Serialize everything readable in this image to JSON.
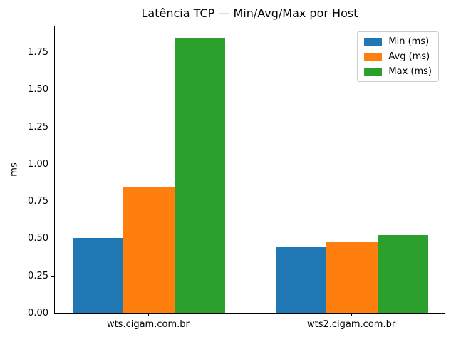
{
  "title": "Latência TCP — Min/Avg/Max por Host",
  "ylabel": "ms",
  "legend": {
    "items": [
      {
        "label": "Min (ms)",
        "color": "#1f77b4"
      },
      {
        "label": "Avg (ms)",
        "color": "#ff7f0e"
      },
      {
        "label": "Max (ms)",
        "color": "#2ca02c"
      }
    ]
  },
  "chart_data": {
    "type": "bar",
    "title": "Latência TCP — Min/Avg/Max por Host",
    "categories": [
      "wts.cigam.com.br",
      "wts2.cigam.com.br"
    ],
    "series": [
      {
        "name": "Min (ms)",
        "color": "#1f77b4",
        "values": [
          0.5,
          0.44
        ]
      },
      {
        "name": "Avg (ms)",
        "color": "#ff7f0e",
        "values": [
          0.84,
          0.48
        ]
      },
      {
        "name": "Max (ms)",
        "color": "#2ca02c",
        "values": [
          1.84,
          0.52
        ]
      }
    ],
    "xlabel": "",
    "ylabel": "ms",
    "ylim": [
      0,
      1.932
    ],
    "yticks": [
      0,
      0.25,
      0.5,
      0.75,
      1.0,
      1.25,
      1.5,
      1.75
    ],
    "ytick_format_decimals": 2,
    "grid": false,
    "legend_position": "upper right",
    "bar_group_width": 0.75,
    "background": "#ffffff",
    "axis_color": "#000000"
  }
}
